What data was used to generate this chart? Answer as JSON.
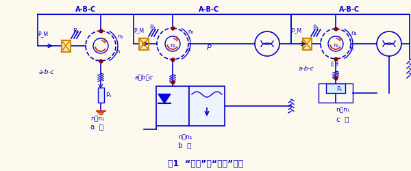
{
  "bg_color": "#FEF9EE",
  "blue": "#0000CC",
  "dark_blue": "#000099",
  "red": "#CC2200",
  "orange": "#CC8800",
  "title": "图1  “单馈”与“双馈”电机",
  "label_a": "a  ）",
  "label_b": "b  ）",
  "label_c": "c  ）",
  "sub_top": "A-B-C",
  "n_lt_n1": "n＜n₁",
  "n_gt_n1": "n＞n₁",
  "abc": "a-b-c",
  "abc_b": "a－b－c"
}
